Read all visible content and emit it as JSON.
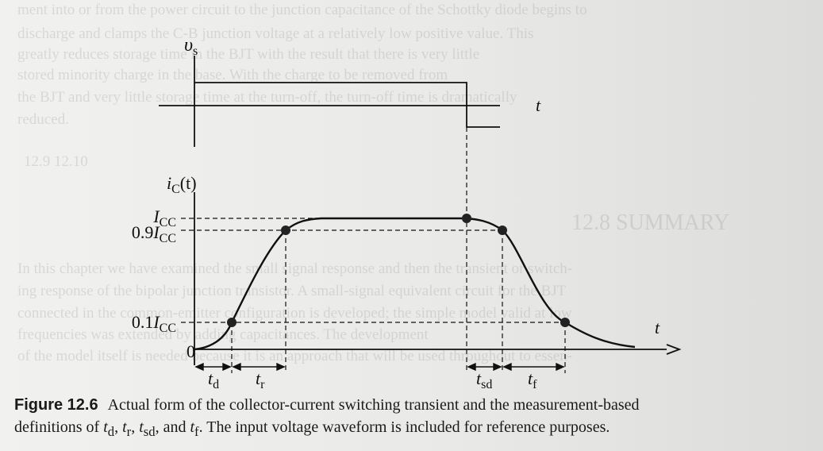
{
  "background_text": [
    "ment into or from the power circuit to the junction capacitance of the Schottky diode begins to",
    "discharge and clamps the C-B junction voltage at a relatively low positive value. This",
    "greatly reduces storage time in the BJT with the result that there is very little",
    "stored minority charge in the base. With the charge to be removed from",
    "the BJT and very little storage time at the turn-off, the turn-off time is dramatically",
    "reduced.",
    "12.9    12.10",
    "12.8  SUMMARY",
    "In this chapter we have examined the small signal response and then the transient or switch-",
    "ing response of the bipolar junction transistor. A small-signal equivalent circuit for the BJT",
    "connected in the common-emitter configuration is developed; the simple model valid at low",
    "frequencies was extended by adding capacitances. The development",
    "of the model itself is needed because it is an approach that will be used throughout to essen-"
  ],
  "diagram": {
    "vs_label": "υ",
    "vs_sub": "s",
    "t_label": "t",
    "ic_label_main": "i",
    "ic_label_sub": "C",
    "ic_label_arg": "(t)",
    "level_icc_main": "I",
    "level_icc_sub": "CC",
    "level_09_prefix": "0.9",
    "level_01_prefix": "0.1",
    "origin_label": "0",
    "intervals": [
      {
        "main": "t",
        "sub": "d"
      },
      {
        "main": "t",
        "sub": "r"
      },
      {
        "main": "t",
        "sub": "sd"
      },
      {
        "main": "t",
        "sub": "f"
      }
    ]
  },
  "caption": {
    "figure_label": "Figure 12.6",
    "line1": "Actual form of the collector-current switching transient and the measurement-based",
    "line2_a": "definitions of ",
    "line2_b": ", and ",
    "line2_c": ". The input voltage waveform is included for reference purposes."
  }
}
